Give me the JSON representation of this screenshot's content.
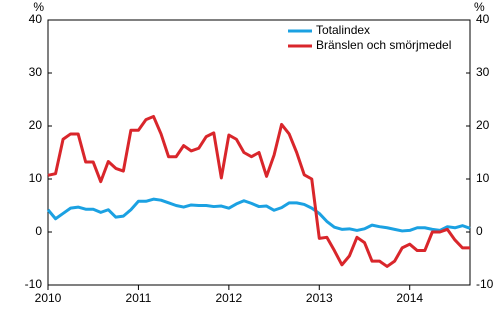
{
  "chart_data": {
    "type": "line",
    "y_label": "%",
    "y2_label": "%",
    "categories": [
      "2010",
      null,
      null,
      null,
      null,
      null,
      null,
      null,
      null,
      null,
      null,
      null,
      "2011",
      null,
      null,
      null,
      null,
      null,
      null,
      null,
      null,
      null,
      null,
      null,
      "2012",
      null,
      null,
      null,
      null,
      null,
      null,
      null,
      null,
      null,
      null,
      null,
      "2013",
      null,
      null,
      null,
      null,
      null,
      null,
      null,
      null,
      null,
      null,
      null,
      "2014",
      null,
      null,
      null,
      null,
      null,
      null,
      null,
      null
    ],
    "series": [
      {
        "name": "Totalindex",
        "color": "#1ba1e2",
        "values": [
          4.2,
          2.5,
          3.5,
          4.5,
          4.7,
          4.3,
          4.3,
          3.7,
          4.2,
          2.8,
          3.0,
          4.2,
          5.8,
          5.8,
          6.2,
          6.0,
          5.5,
          5.0,
          4.7,
          5.1,
          5.0,
          5.0,
          4.8,
          4.9,
          4.5,
          5.3,
          5.9,
          5.4,
          4.8,
          4.9,
          4.1,
          4.6,
          5.5,
          5.5,
          5.2,
          4.5,
          3.5,
          2.0,
          0.9,
          0.5,
          0.6,
          0.3,
          0.6,
          1.3,
          1.0,
          0.8,
          0.5,
          0.2,
          0.3,
          0.8,
          0.8,
          0.5,
          0.3,
          1.0,
          0.8,
          1.2,
          0.7
        ]
      },
      {
        "name": "Bränslen och smörjmedel",
        "color": "#d9262b",
        "values": [
          10.7,
          11,
          17.5,
          18.5,
          18.5,
          13.2,
          13.2,
          9.5,
          13.3,
          12,
          11.5,
          19.2,
          19.2,
          21.2,
          21.8,
          18.5,
          14.2,
          14.2,
          16.3,
          15.3,
          15.8,
          18,
          18.7,
          10.2,
          18.3,
          17.5,
          15,
          14.2,
          15,
          10.5,
          14.5,
          20.3,
          18.5,
          15,
          10.8,
          10,
          -1.2,
          -1,
          -3.5,
          -6.2,
          -4.5,
          -1,
          -2,
          -5.5,
          -5.5,
          -6.5,
          -5.5,
          -3,
          -2.3,
          -3.5,
          -3.5,
          0,
          0,
          0.5,
          -1.5,
          -3,
          -3
        ]
      }
    ],
    "ylim": [
      -10,
      40
    ],
    "yticks": [
      -10,
      0,
      10,
      20,
      30,
      40
    ],
    "y2lim": [
      -10,
      40
    ],
    "y2ticks": [
      -10,
      0,
      10,
      20,
      30,
      40
    ],
    "grid": false,
    "legend": "top-right"
  }
}
